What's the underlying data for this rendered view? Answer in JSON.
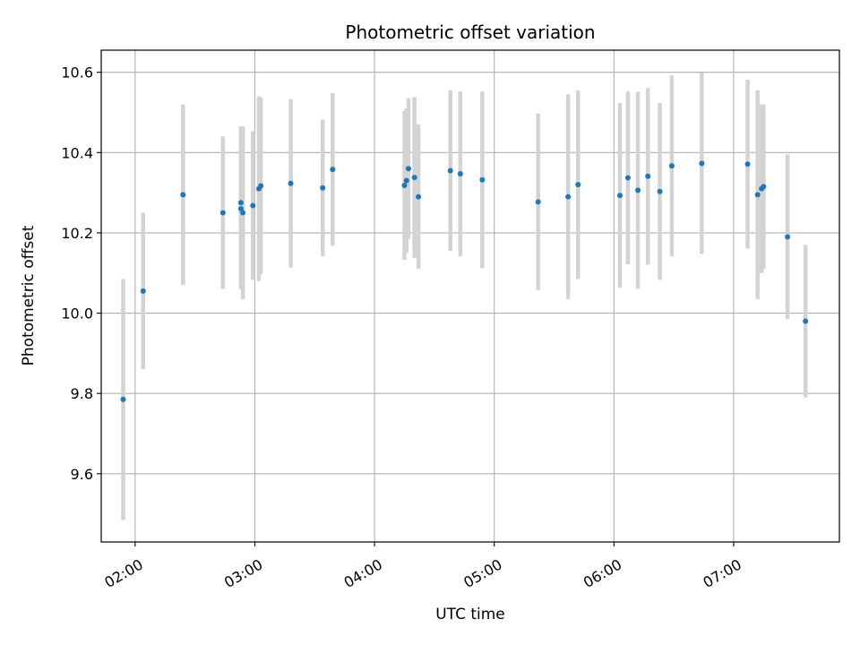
{
  "chart_data": {
    "type": "scatter",
    "title": "Photometric offset variation",
    "xlabel": "UTC time",
    "ylabel": "Photometric offset",
    "x_tick_labels": [
      "02:00",
      "03:00",
      "04:00",
      "05:00",
      "06:00",
      "07:00"
    ],
    "y_tick_labels": [
      "9.6",
      "9.8",
      "10.0",
      "10.2",
      "10.4",
      "10.6"
    ],
    "y_ticks": [
      9.6,
      9.8,
      10.0,
      10.2,
      10.4,
      10.6
    ],
    "xlim": [
      "01:43",
      "07:53"
    ],
    "ylim": [
      9.43,
      10.655
    ],
    "grid": true,
    "marker_color": "#1f77b4",
    "errorbar_color": "#d3d3d3",
    "points": [
      {
        "t": "01:54",
        "y": 9.785,
        "err": 0.3
      },
      {
        "t": "02:04",
        "y": 10.055,
        "err": 0.195
      },
      {
        "t": "02:24",
        "y": 10.295,
        "err": 0.225
      },
      {
        "t": "02:44",
        "y": 10.25,
        "err": 0.19
      },
      {
        "t": "02:53",
        "y": 10.275,
        "err": 0.19
      },
      {
        "t": "02:53",
        "y": 10.26,
        "err": 0.2
      },
      {
        "t": "02:54",
        "y": 10.25,
        "err": 0.215
      },
      {
        "t": "02:59",
        "y": 10.268,
        "err": 0.185
      },
      {
        "t": "03:02",
        "y": 10.31,
        "err": 0.23
      },
      {
        "t": "03:03",
        "y": 10.317,
        "err": 0.22
      },
      {
        "t": "03:18",
        "y": 10.323,
        "err": 0.21
      },
      {
        "t": "03:34",
        "y": 10.312,
        "err": 0.17
      },
      {
        "t": "03:39",
        "y": 10.358,
        "err": 0.19
      },
      {
        "t": "04:15",
        "y": 10.318,
        "err": 0.185
      },
      {
        "t": "04:16",
        "y": 10.33,
        "err": 0.18
      },
      {
        "t": "04:17",
        "y": 10.36,
        "err": 0.175
      },
      {
        "t": "04:20",
        "y": 10.338,
        "err": 0.2
      },
      {
        "t": "04:22",
        "y": 10.29,
        "err": 0.18
      },
      {
        "t": "04:38",
        "y": 10.355,
        "err": 0.2
      },
      {
        "t": "04:43",
        "y": 10.347,
        "err": 0.205
      },
      {
        "t": "04:54",
        "y": 10.332,
        "err": 0.22
      },
      {
        "t": "05:22",
        "y": 10.277,
        "err": 0.22
      },
      {
        "t": "05:37",
        "y": 10.29,
        "err": 0.255
      },
      {
        "t": "05:42",
        "y": 10.32,
        "err": 0.235
      },
      {
        "t": "06:03",
        "y": 10.293,
        "err": 0.23
      },
      {
        "t": "06:07",
        "y": 10.337,
        "err": 0.215
      },
      {
        "t": "06:12",
        "y": 10.306,
        "err": 0.245
      },
      {
        "t": "06:17",
        "y": 10.341,
        "err": 0.22
      },
      {
        "t": "06:23",
        "y": 10.303,
        "err": 0.22
      },
      {
        "t": "06:29",
        "y": 10.367,
        "err": 0.225
      },
      {
        "t": "06:44",
        "y": 10.373,
        "err": 0.225
      },
      {
        "t": "07:07",
        "y": 10.371,
        "err": 0.21
      },
      {
        "t": "07:12",
        "y": 10.295,
        "err": 0.26
      },
      {
        "t": "07:14",
        "y": 10.31,
        "err": 0.21
      },
      {
        "t": "07:15",
        "y": 10.315,
        "err": 0.205
      },
      {
        "t": "07:27",
        "y": 10.19,
        "err": 0.205
      },
      {
        "t": "07:36",
        "y": 9.98,
        "err": 0.19
      }
    ]
  }
}
